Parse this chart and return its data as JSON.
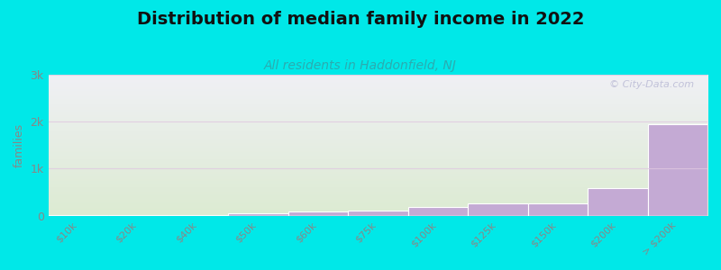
{
  "title": "Distribution of median family income in 2022",
  "subtitle": "All residents in Haddonfield, NJ",
  "ylabel": "families",
  "categories": [
    "$10k",
    "$20k",
    "$40k",
    "$50k",
    "$60k",
    "$75k",
    "$100k",
    "$125k",
    "$150k",
    "$200k",
    "> $200k"
  ],
  "values": [
    8,
    8,
    8,
    45,
    85,
    105,
    190,
    260,
    255,
    580,
    1950
  ],
  "bar_color": "#c4aad4",
  "bar_edge_color": "white",
  "background_color": "#00e8e8",
  "plot_bg_top": "#f0f0f5",
  "plot_bg_bottom": "#deecd8",
  "yticks": [
    0,
    1000,
    2000,
    3000
  ],
  "ytick_labels": [
    "0",
    "1k",
    "2k",
    "3k"
  ],
  "ylim": [
    0,
    3000
  ],
  "title_fontsize": 14,
  "subtitle_fontsize": 10,
  "subtitle_color": "#2aacb0",
  "watermark": "© City-Data.com",
  "tick_color": "#888888",
  "grid_color": "#e0c8e0",
  "grid_alpha": 0.8
}
